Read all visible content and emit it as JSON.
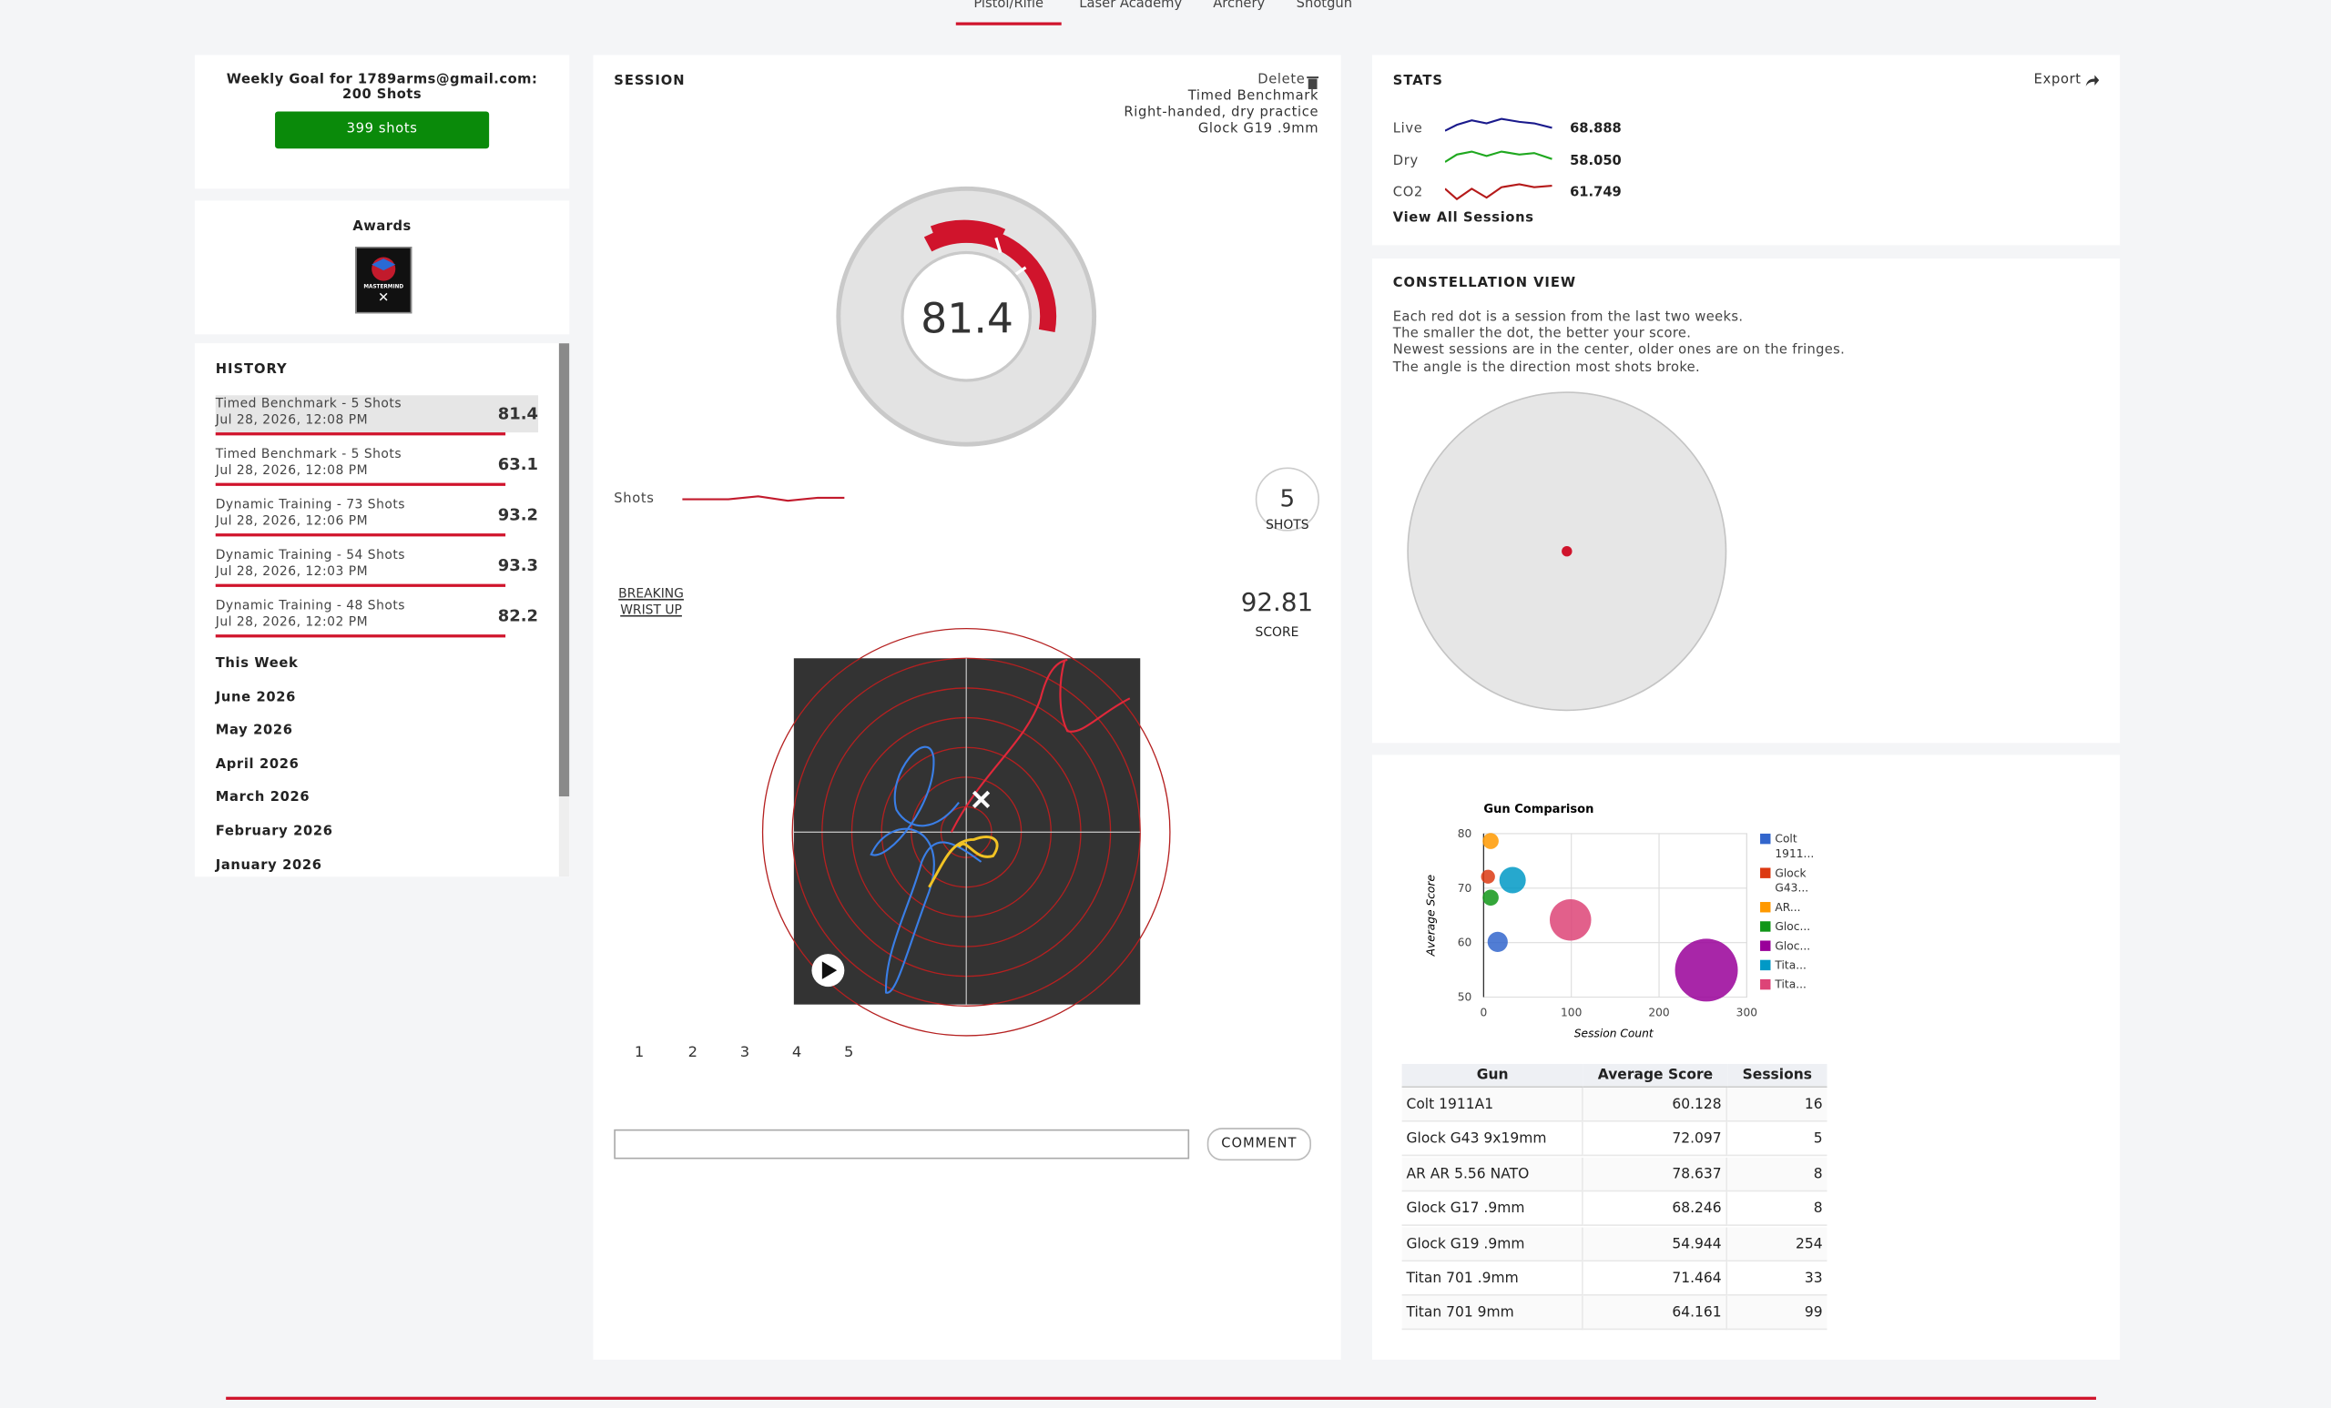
{
  "nav": {
    "tabs": [
      "Pistol/Rifle",
      "Laser Academy",
      "Archery",
      "Shotgun"
    ]
  },
  "goal": {
    "title_lines": [
      "Weekly Goal for 1789arms@gmail.com:",
      "200 Shots"
    ],
    "progress": "399 shots"
  },
  "awards": {
    "title": "Awards",
    "badge": "MASTERMIND"
  },
  "history": {
    "title": "HISTORY",
    "sessions": [
      {
        "name": "Timed Benchmark - 5 Shots",
        "date": "Jul 28, 2026, 12:08 PM",
        "score": 81.4
      },
      {
        "name": "Timed Benchmark - 5 Shots",
        "date": "Jul 28, 2026, 12:08 PM",
        "score": 63.1
      },
      {
        "name": "Dynamic Training - 73 Shots",
        "date": "Jul 28, 2026, 12:06 PM",
        "score": 93.2
      },
      {
        "name": "Dynamic Training - 54 Shots",
        "date": "Jul 28, 2026, 12:03 PM",
        "score": 93.3
      },
      {
        "name": "Dynamic Training - 48 Shots",
        "date": "Jul 28, 2026, 12:02 PM",
        "score": 82.2
      }
    ],
    "months": [
      "This Week",
      "June 2026",
      "May 2026",
      "April 2026",
      "March 2026",
      "February 2026",
      "January 2026"
    ]
  },
  "session": {
    "title": "SESSION",
    "delete": "Delete",
    "details": [
      "Timed Benchmark",
      "Right-handed, dry practice",
      "Glock G19 .9mm"
    ],
    "score": 81.4,
    "shots_label": "Shots",
    "shot_count": 5,
    "shot_count_label": "SHOTS",
    "shot_tag_lines": [
      "BREAKING",
      "WRIST UP"
    ],
    "shot_score": 92.81,
    "score_label": "SCORE",
    "pages": [
      1,
      2,
      3,
      4,
      5
    ],
    "comment_button": "COMMENT"
  },
  "stats": {
    "title": "STATS",
    "export": "Export",
    "rows": [
      {
        "name": "Live",
        "value": "68.888"
      },
      {
        "name": "Dry",
        "value": "58.050"
      },
      {
        "name": "CO2",
        "value": "61.749"
      }
    ],
    "link": "View All Sessions"
  },
  "constellation": {
    "title": "CONSTELLATION VIEW",
    "description": [
      "Each red dot is a session from the last two weeks.",
      "The smaller the dot, the better your score.",
      "Newest sessions are in the center, older ones are on the fringes.",
      "The angle is the direction most shots broke."
    ]
  },
  "chart_data": {
    "type": "bubble",
    "title": "Gun Comparison",
    "x_label": "Session Count",
    "y_label": "Average Score",
    "xlim": [
      0,
      300
    ],
    "xticks": [
      0,
      100,
      200,
      300
    ],
    "ylim": [
      50,
      80
    ],
    "yticks": [
      50,
      60,
      70,
      80
    ],
    "grid": true,
    "series": [
      {
        "name": "Colt 1911...",
        "color": "#3366cc",
        "x": [
          16
        ],
        "values": [
          60.128
        ]
      },
      {
        "name": "Glock G43...",
        "color": "#dc3912",
        "x": [
          5
        ],
        "values": [
          72.097
        ]
      },
      {
        "name": "AR...",
        "color": "#ff9900",
        "x": [
          8
        ],
        "values": [
          78.637
        ]
      },
      {
        "name": "Gloc...",
        "color": "#109618",
        "x": [
          8
        ],
        "values": [
          68.246
        ]
      },
      {
        "name": "Gloc...",
        "color": "#990099",
        "x": [
          254
        ],
        "values": [
          54.944
        ]
      },
      {
        "name": "Tita...",
        "color": "#0099c6",
        "x": [
          33
        ],
        "values": [
          71.464
        ]
      },
      {
        "name": "Tita...",
        "color": "#dd4477",
        "x": [
          99
        ],
        "values": [
          64.161
        ]
      }
    ]
  },
  "table": {
    "headers": [
      "Gun",
      "Average Score",
      "Sessions"
    ],
    "rows": [
      [
        "Colt 1911A1",
        60.128,
        16
      ],
      [
        "Glock G43 9x19mm",
        72.097,
        5
      ],
      [
        "AR AR 5.56 NATO",
        78.637,
        8
      ],
      [
        "Glock G17 .9mm",
        68.246,
        8
      ],
      [
        "Glock G19 .9mm",
        54.944,
        254
      ],
      [
        "Titan 701 .9mm",
        71.464,
        33
      ],
      [
        "Titan 701 9mm",
        64.161,
        99
      ]
    ]
  }
}
